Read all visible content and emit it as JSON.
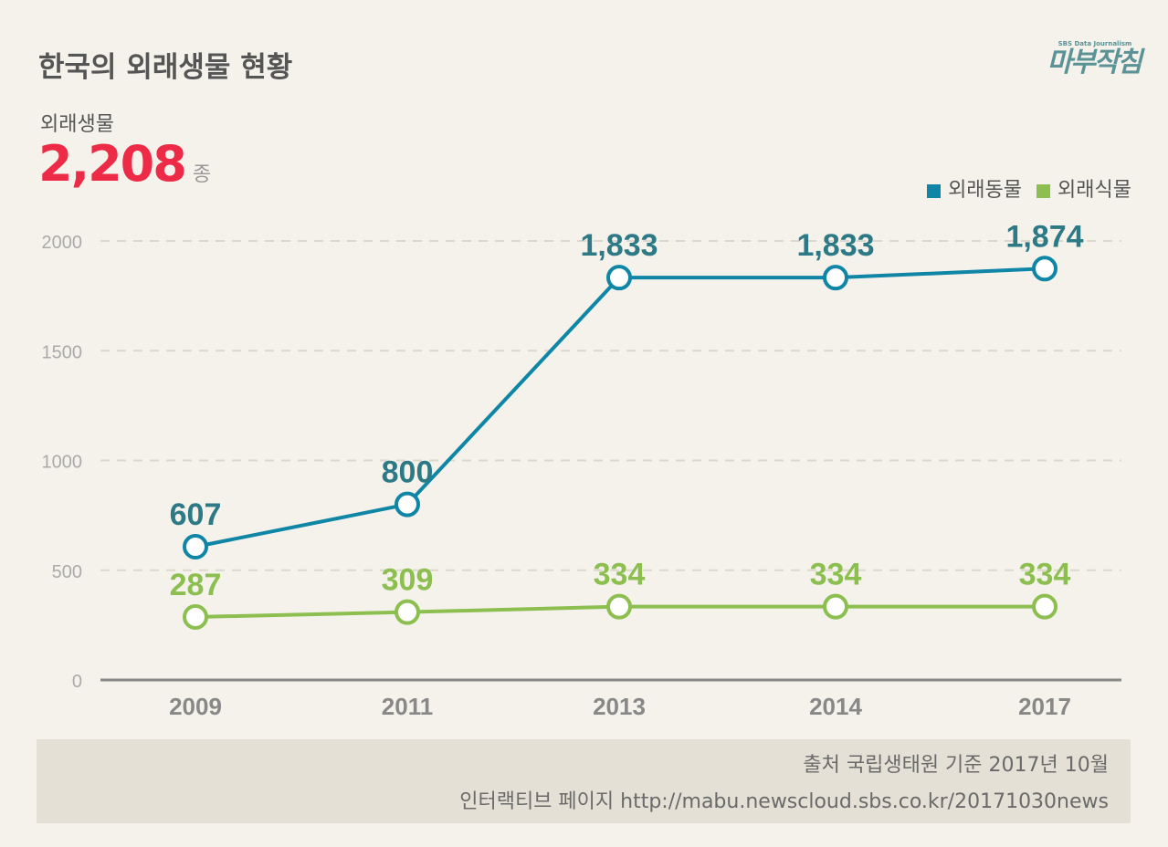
{
  "title": "한국의 외래생물 현황",
  "summary": {
    "label": "외래생물",
    "value": "2,208",
    "unit": "종"
  },
  "logo": {
    "tagline": "SBS Data Journalism",
    "name": "마부작침"
  },
  "colors": {
    "animals": "#0f86a6",
    "plants": "#8cbf4f",
    "label_animals": "#2d7a86",
    "accent": "#ee2b47"
  },
  "chart_data": {
    "type": "line",
    "categories": [
      "2009",
      "2011",
      "2013",
      "2014",
      "2017"
    ],
    "series": [
      {
        "name": "외래동물",
        "values": [
          607,
          800,
          1833,
          1833,
          1874
        ],
        "labels": [
          "607",
          "800",
          "1,833",
          "1,833",
          "1,874"
        ]
      },
      {
        "name": "외래식물",
        "values": [
          287,
          309,
          334,
          334,
          334
        ],
        "labels": [
          "287",
          "309",
          "334",
          "334",
          "334"
        ]
      }
    ],
    "yticks": [
      0,
      500,
      1000,
      1500,
      2000
    ],
    "ylim": [
      0,
      2000
    ],
    "grid": true,
    "legend": "top-right"
  },
  "footer": {
    "source": "출처 국립생태원   기준  2017년 10월",
    "link": "인터랙티브 페이지  http://mabu.newscloud.sbs.co.kr/20171030news"
  }
}
